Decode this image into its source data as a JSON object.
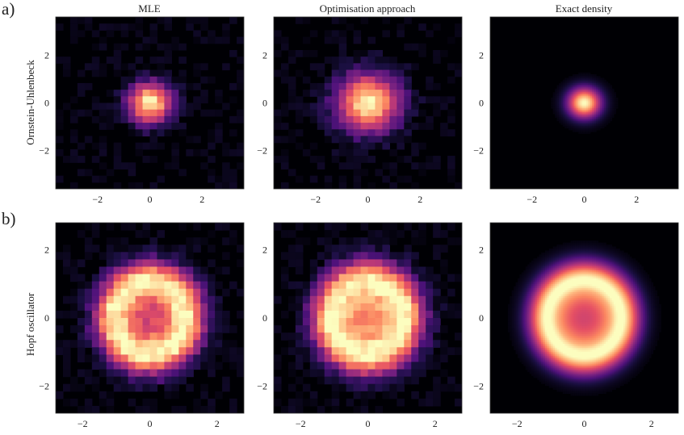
{
  "row_labels": [
    "a)",
    "b)"
  ],
  "col_titles": [
    "MLE",
    "Optimisation approach",
    "Exact density"
  ],
  "ylabels": [
    "Ornstein-Uhlenbeck",
    "Hopf oscillator"
  ],
  "colormap": "magma",
  "colors": {
    "background": "#000004",
    "low": "#3b0f70",
    "mid": "#b73779",
    "high": "#fc8961",
    "peak": "#fcfdbf"
  },
  "chart_data": [
    {
      "type": "heatmap",
      "row": "a",
      "title": "MLE",
      "ylabel": "Ornstein-Uhlenbeck",
      "xlim": [
        -3.6,
        3.6
      ],
      "ylim": [
        -3.6,
        3.6
      ],
      "xticks": [
        -2,
        0,
        2
      ],
      "yticks": [
        2,
        0,
        -2
      ],
      "grid": false,
      "density": {
        "shape": "gaussian",
        "center": [
          0.0,
          0.0
        ],
        "sigma": 0.6,
        "resolution": 26
      }
    },
    {
      "type": "heatmap",
      "row": "a",
      "title": "Optimisation approach",
      "ylabel": "",
      "xlim": [
        -3.6,
        3.6
      ],
      "ylim": [
        -3.6,
        3.6
      ],
      "xticks": [
        -2,
        0,
        2
      ],
      "yticks": [
        2,
        0,
        -2
      ],
      "grid": false,
      "density": {
        "shape": "gaussian",
        "center": [
          0.0,
          0.0
        ],
        "sigma": 0.85,
        "resolution": 26
      }
    },
    {
      "type": "heatmap",
      "row": "a",
      "title": "Exact density",
      "ylabel": "",
      "xlim": [
        -3.6,
        3.6
      ],
      "ylim": [
        -3.6,
        3.6
      ],
      "xticks": [
        -2,
        0,
        2
      ],
      "yticks": [
        2,
        0,
        -2
      ],
      "grid": false,
      "density": {
        "shape": "gaussian",
        "center": [
          0.0,
          0.0
        ],
        "sigma": 0.45,
        "resolution": 0
      }
    },
    {
      "type": "heatmap",
      "row": "b",
      "title": "",
      "ylabel": "Hopf oscillator",
      "xlim": [
        -2.8,
        2.8
      ],
      "ylim": [
        -2.8,
        2.8
      ],
      "xticks": [
        -2,
        0,
        2
      ],
      "yticks": [
        2,
        0,
        -2
      ],
      "grid": false,
      "density": {
        "shape": "ring",
        "center": [
          0.0,
          0.0
        ],
        "radius": 1.0,
        "width": 0.75,
        "center_level": 0.55,
        "resolution": 26
      }
    },
    {
      "type": "heatmap",
      "row": "b",
      "title": "",
      "ylabel": "",
      "xlim": [
        -2.8,
        2.8
      ],
      "ylim": [
        -2.8,
        2.8
      ],
      "xticks": [
        -2,
        0,
        2
      ],
      "yticks": [
        2,
        0,
        -2
      ],
      "grid": false,
      "density": {
        "shape": "ring",
        "center": [
          0.0,
          0.0
        ],
        "radius": 1.0,
        "width": 0.8,
        "center_level": 0.7,
        "resolution": 26
      }
    },
    {
      "type": "heatmap",
      "row": "b",
      "title": "",
      "ylabel": "",
      "xlim": [
        -2.8,
        2.8
      ],
      "ylim": [
        -2.8,
        2.8
      ],
      "xticks": [
        -2,
        0,
        2
      ],
      "yticks": [
        2,
        0,
        -2
      ],
      "grid": false,
      "density": {
        "shape": "ring",
        "center": [
          0.0,
          0.0
        ],
        "radius": 1.05,
        "width": 0.7,
        "center_level": 0.55,
        "resolution": 0
      }
    }
  ]
}
